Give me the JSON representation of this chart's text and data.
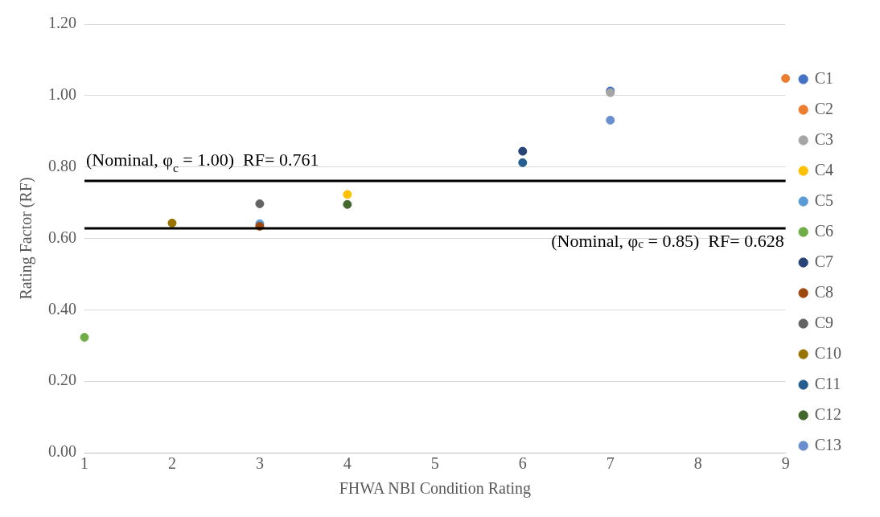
{
  "chart_data": {
    "type": "scatter",
    "xlabel": "FHWA NBI Condition Rating",
    "ylabel": "Rating Factor (RF)",
    "xlim": [
      1,
      9
    ],
    "xticks": [
      1,
      2,
      3,
      4,
      5,
      6,
      7,
      8,
      9
    ],
    "ylim": [
      0,
      1.2
    ],
    "yticks": [
      {
        "value": 0,
        "label": "0.00"
      },
      {
        "value": 0.2,
        "label": "0.20"
      },
      {
        "value": 0.4,
        "label": "0.40"
      },
      {
        "value": 0.6,
        "label": "0.60"
      },
      {
        "value": 0.8,
        "label": "0.80"
      },
      {
        "value": 1,
        "label": "1.00"
      },
      {
        "value": 1.2,
        "label": "1.20"
      }
    ],
    "grid": "y",
    "legend": "right",
    "marker": "circle",
    "series": [
      {
        "name": "C1",
        "color": "#4472c4",
        "x": [
          7
        ],
        "values": [
          1.013
        ]
      },
      {
        "name": "C2",
        "color": "#ed7d31",
        "x": [
          9
        ],
        "values": [
          1.048
        ]
      },
      {
        "name": "C3",
        "color": "#a5a5a5",
        "x": [
          7
        ],
        "values": [
          1.008
        ]
      },
      {
        "name": "C4",
        "color": "#ffc000",
        "x": [
          4
        ],
        "values": [
          0.723
        ]
      },
      {
        "name": "C5",
        "color": "#5b9bd5",
        "x": [
          3
        ],
        "values": [
          0.641
        ]
      },
      {
        "name": "C6",
        "color": "#70ad47",
        "x": [
          1
        ],
        "values": [
          0.323
        ]
      },
      {
        "name": "C7",
        "color": "#264478",
        "x": [
          6
        ],
        "values": [
          0.844
        ]
      },
      {
        "name": "C8",
        "color": "#9e480e",
        "x": [
          3
        ],
        "values": [
          0.634
        ]
      },
      {
        "name": "C9",
        "color": "#636363",
        "x": [
          3
        ],
        "values": [
          0.697
        ]
      },
      {
        "name": "C10",
        "color": "#997300",
        "x": [
          2
        ],
        "values": [
          0.643
        ]
      },
      {
        "name": "C11",
        "color": "#255e91",
        "x": [
          6
        ],
        "values": [
          0.812
        ]
      },
      {
        "name": "C12",
        "color": "#43682b",
        "x": [
          4
        ],
        "values": [
          0.695
        ]
      },
      {
        "name": "C13",
        "color": "#698ed0",
        "x": [
          7
        ],
        "values": [
          0.931
        ]
      }
    ],
    "ref_lines": [
      {
        "axis": "y",
        "value": 0.761,
        "label": "(Nominal, φ$_{c}$ = 1.00)  RF= 0.761",
        "color": "#000000"
      },
      {
        "axis": "y",
        "value": 0.628,
        "label": "(Nominal, φ$_{c}$ = 0.85)  RF= 0.628",
        "color": "#000000"
      }
    ]
  }
}
